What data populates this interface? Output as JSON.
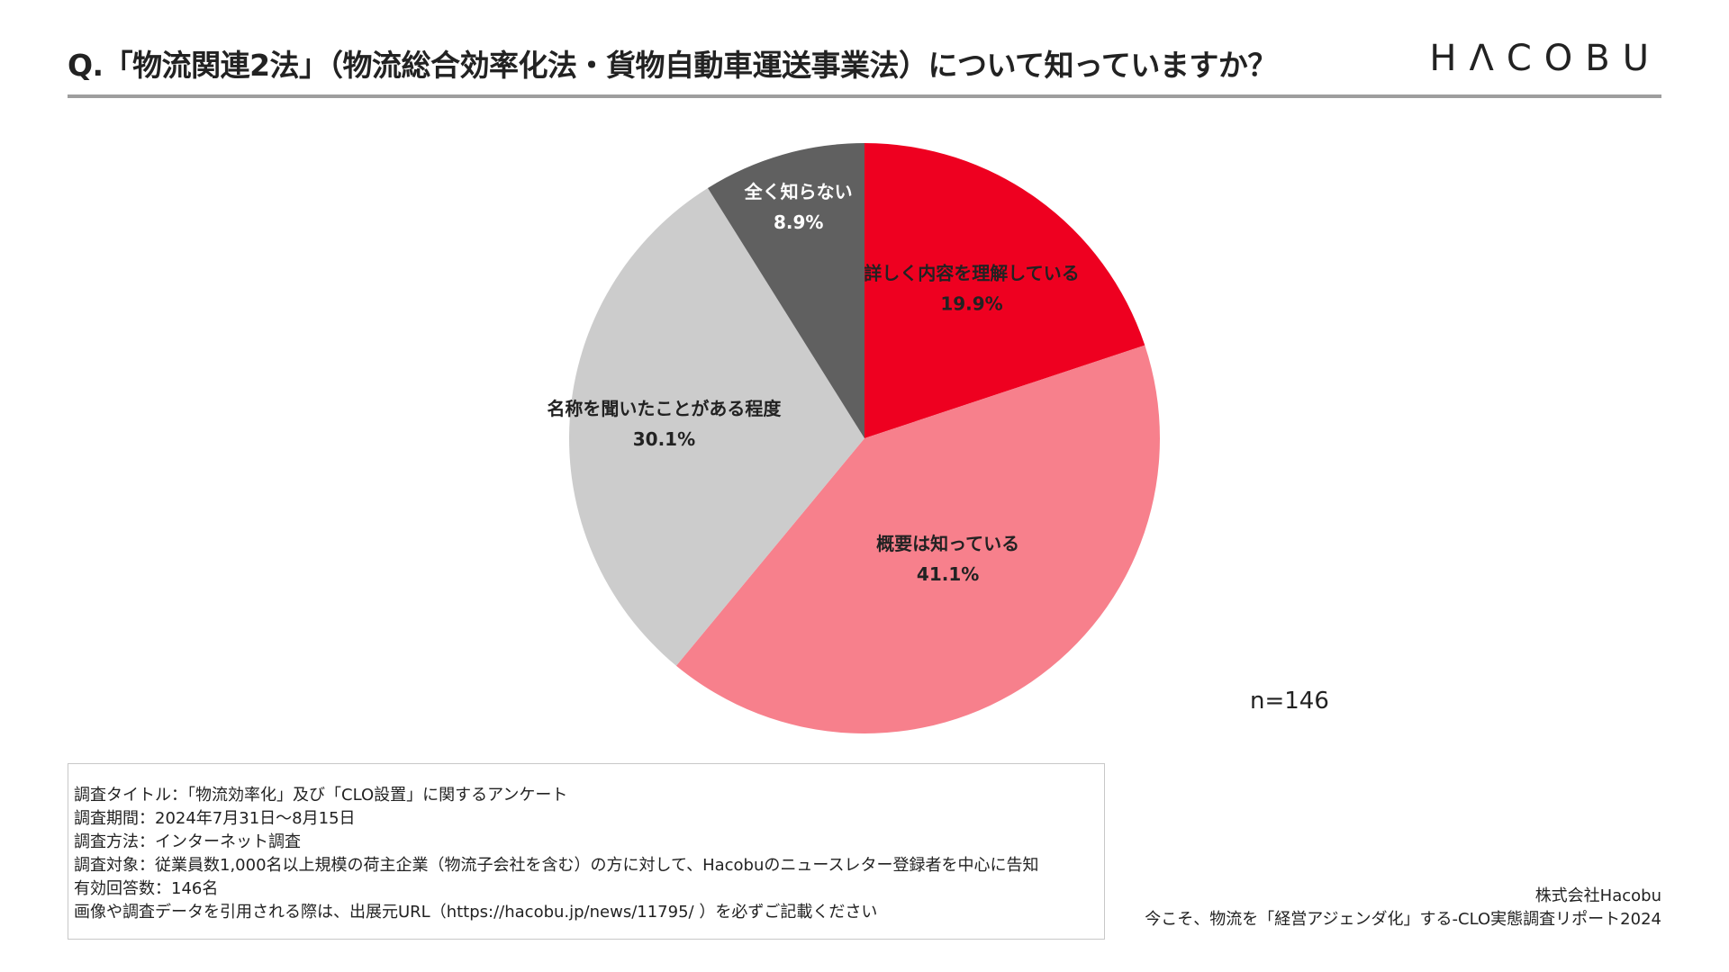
{
  "header": {
    "title": "Q.「物流関連2法」（物流総合効率化法・貨物自動車運送事業法）について知っていますか？",
    "logo": "HΛCOBU"
  },
  "chart_data": {
    "type": "pie",
    "slices": [
      {
        "label": "詳しく内容を理解している",
        "value": 19.9,
        "value_label": "19.9%",
        "color": "#ee0020",
        "label_color": "#222222"
      },
      {
        "label": "概要は知っている",
        "value": 41.1,
        "value_label": "41.1%",
        "color": "#f7808c",
        "label_color": "#222222"
      },
      {
        "label": "名称を聞いたことがある程度",
        "value": 30.1,
        "value_label": "30.1%",
        "color": "#cccccc",
        "label_color": "#222222"
      },
      {
        "label": "全く知らない",
        "value": 8.9,
        "value_label": "8.9%",
        "color": "#606060",
        "label_color": "#ffffff"
      }
    ],
    "start_angle": "12 o'clock",
    "direction": "clockwise",
    "n_label": "n=146"
  },
  "survey": {
    "lines": [
      "調査タイトル：「物流効率化」及び「CLO設置」に関するアンケート",
      "調査期間：2024年7月31日〜8月15日",
      "調査方法：インターネット調査",
      "調査対象：従業員数1,000名以上規模の荷主企業（物流子会社を含む）の方に対して、Hacobuのニュースレター登録者を中心に告知",
      "有効回答数：146名",
      "画像や調査データを引用される際は、出展元URL（https://hacobu.jp/news/11795/ ）を必ずご記載ください"
    ]
  },
  "source": {
    "company": "株式会社Hacobu",
    "report": "今こそ、物流を「経営アジェンダ化」する-CLO実態調査リポート2024"
  }
}
